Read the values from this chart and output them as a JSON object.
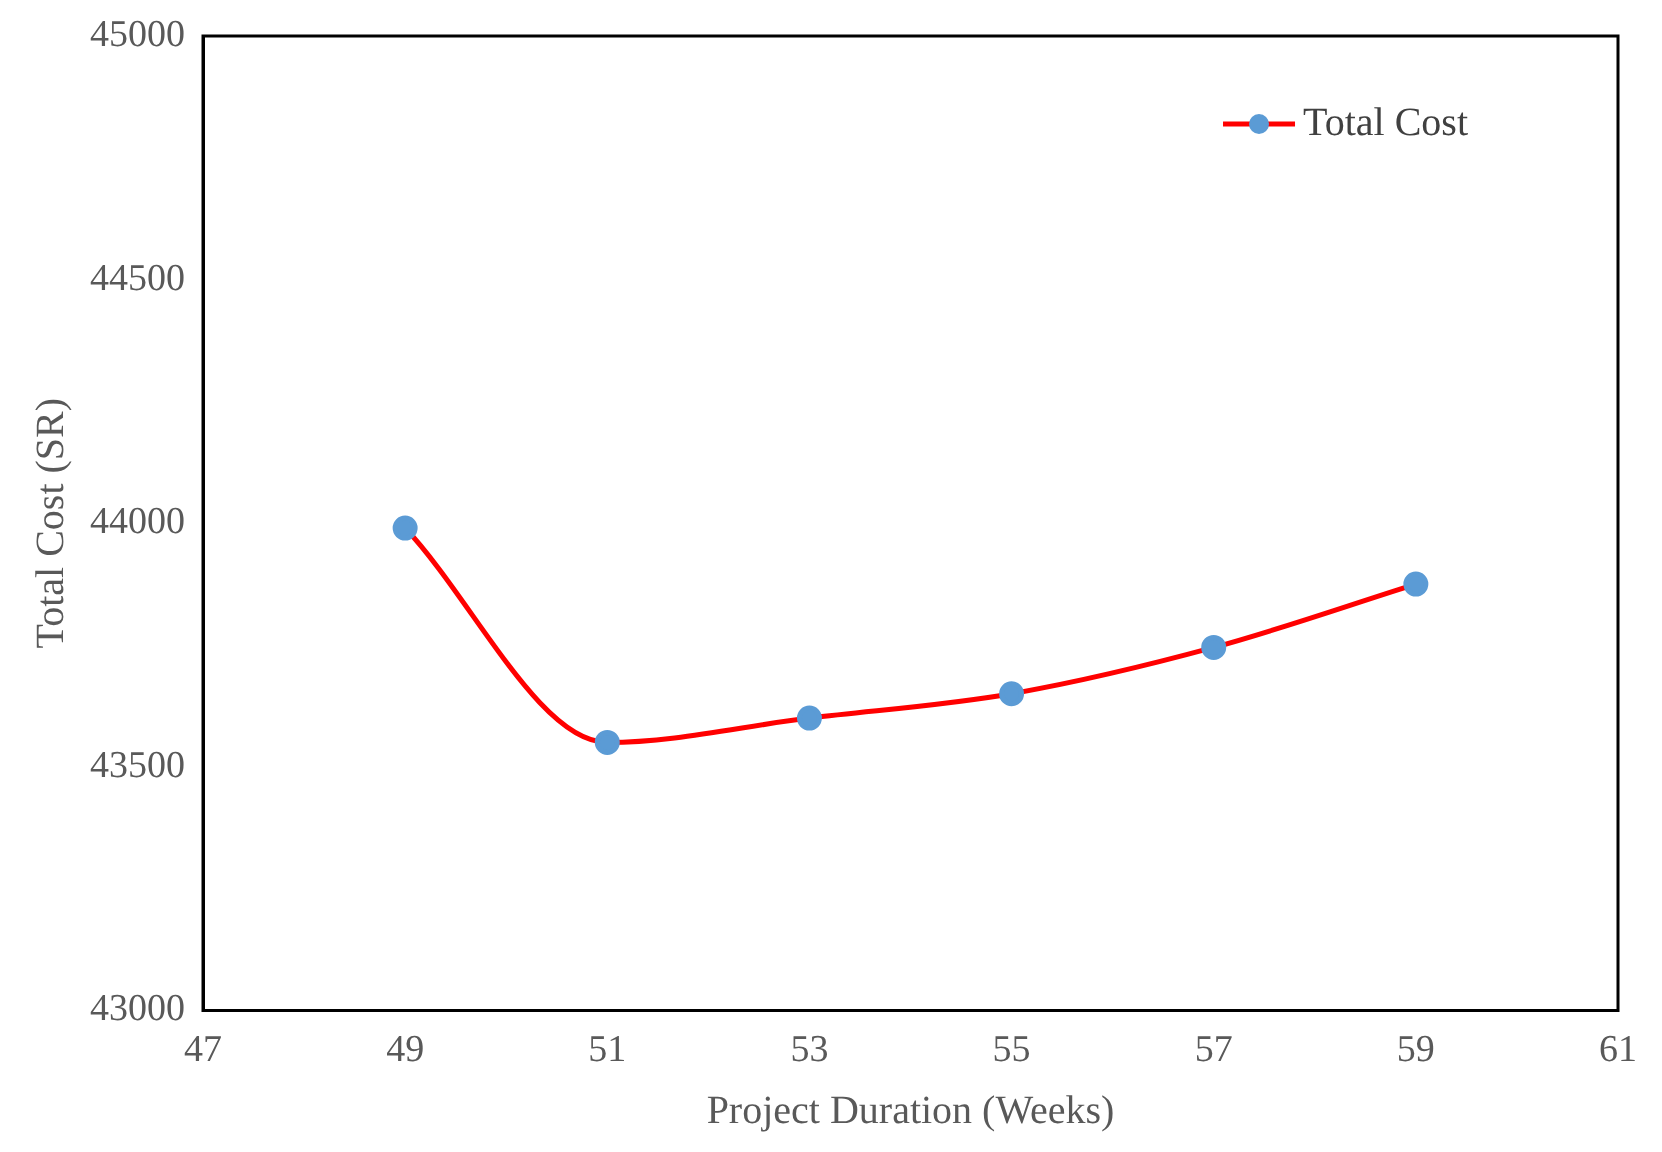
{
  "chart_data": {
    "type": "line",
    "xlabel": "Project Duration (Weeks)",
    "ylabel": "Total Cost (SR)",
    "x": [
      49,
      51,
      53,
      55,
      57,
      59
    ],
    "series": [
      {
        "name": "Total Cost",
        "color": "#ff0000",
        "values": [
          43990,
          43550,
          43600,
          43650,
          43745,
          43875
        ]
      }
    ],
    "xlim": [
      47,
      61
    ],
    "xticks": [
      47,
      49,
      51,
      53,
      55,
      57,
      59,
      61
    ],
    "ylim": [
      43000,
      45000
    ],
    "yticks": [
      43000,
      43500,
      44000,
      44500,
      45000
    ],
    "grid": false,
    "legend": "top right",
    "marker": "circle"
  }
}
